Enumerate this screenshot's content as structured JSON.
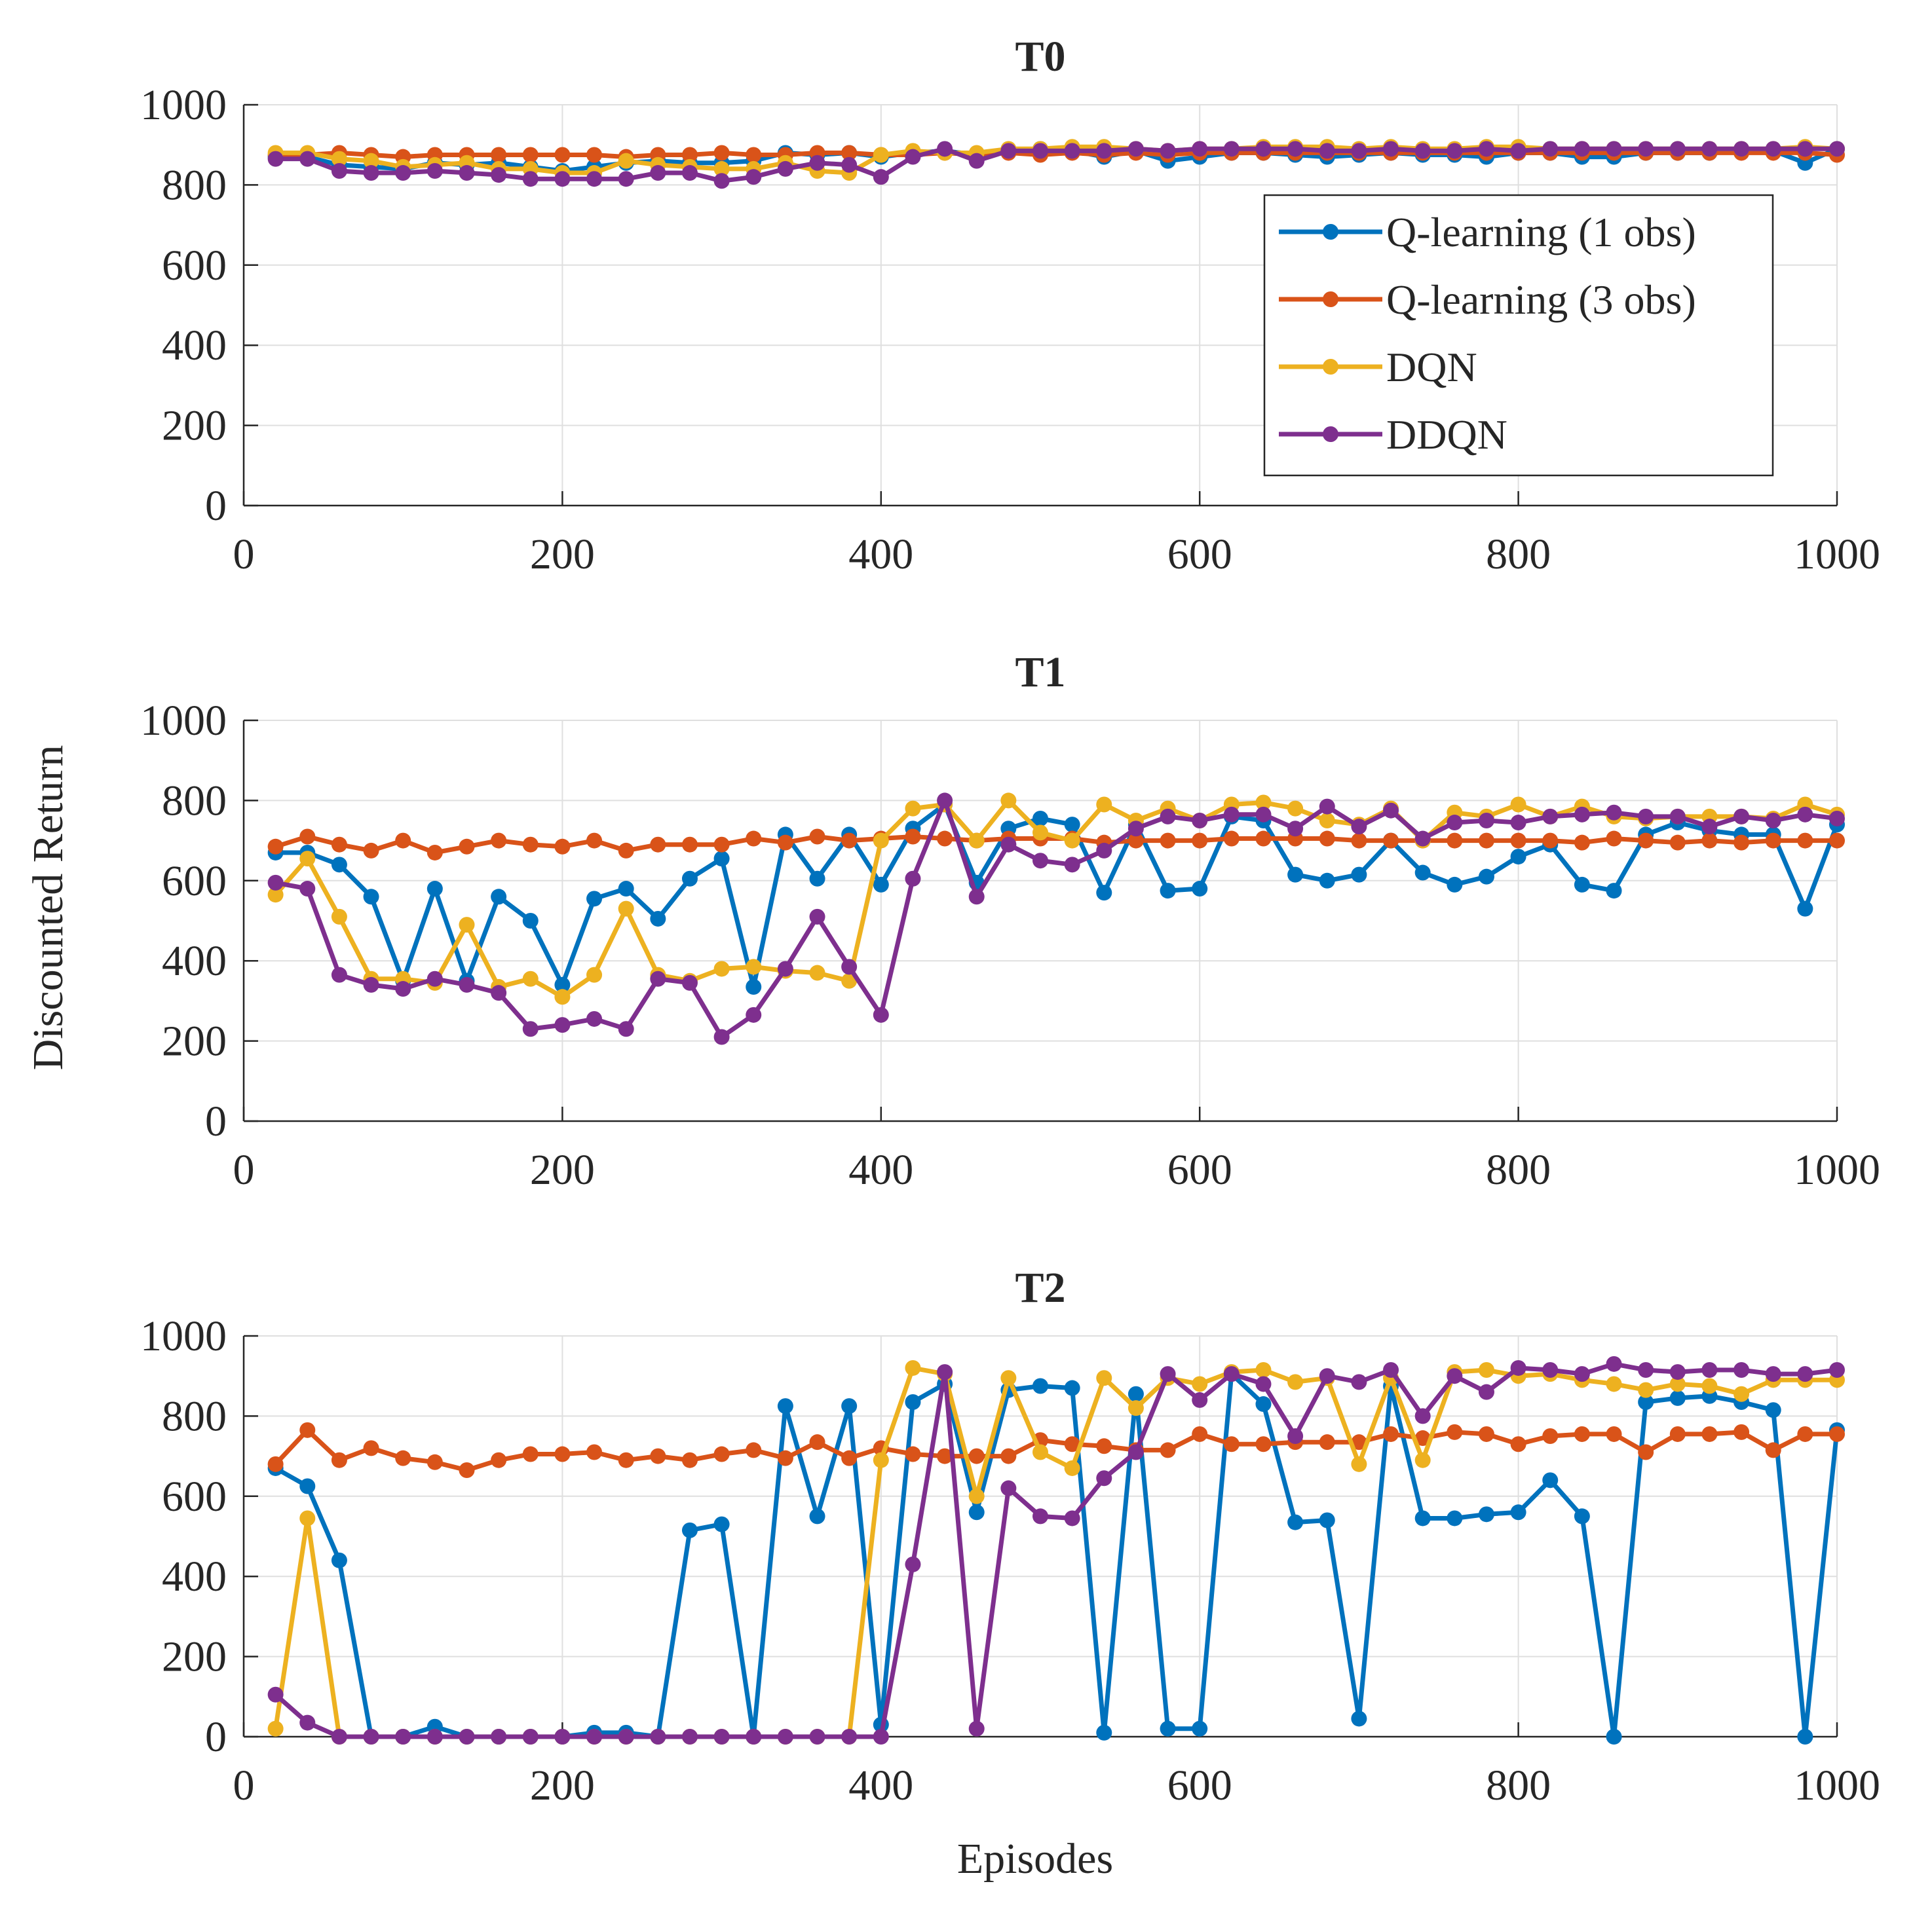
{
  "figure": {
    "ylabel": "Discounted Return",
    "xlabel": "Episodes"
  },
  "legend": {
    "entries": [
      "Q-learning (1 obs)",
      "Q-learning (3 obs)",
      "DQN",
      "DDQN"
    ],
    "colors": [
      "#0072BD",
      "#D95319",
      "#EDB120",
      "#7E2F8E"
    ]
  },
  "chart_data": [
    {
      "type": "line",
      "title": "T0",
      "xlabel": "Episodes",
      "ylabel": "Discounted Return",
      "xlim": [
        0,
        1000
      ],
      "ylim": [
        0,
        1000
      ],
      "xticks": [
        0,
        200,
        400,
        600,
        800,
        1000
      ],
      "yticks": [
        0,
        200,
        400,
        600,
        800,
        1000
      ],
      "grid": true,
      "legend_position": "right",
      "x": [
        20,
        40,
        60,
        80,
        100,
        120,
        140,
        160,
        180,
        200,
        220,
        240,
        260,
        280,
        300,
        320,
        340,
        360,
        380,
        400,
        420,
        440,
        460,
        480,
        500,
        520,
        540,
        560,
        580,
        600,
        620,
        640,
        660,
        680,
        700,
        720,
        740,
        760,
        780,
        800,
        820,
        840,
        860,
        880,
        900,
        920,
        940,
        960,
        980,
        1000
      ],
      "series": [
        {
          "name": "Q-learning (1 obs)",
          "color": "#0072BD",
          "values": [
            870,
            870,
            850,
            845,
            840,
            855,
            850,
            855,
            845,
            835,
            845,
            855,
            860,
            855,
            855,
            860,
            880,
            875,
            880,
            870,
            880,
            885,
            875,
            885,
            890,
            885,
            870,
            885,
            860,
            870,
            880,
            880,
            875,
            870,
            875,
            880,
            875,
            875,
            870,
            880,
            880,
            870,
            870,
            880,
            880,
            880,
            885,
            885,
            855,
            890
          ]
        },
        {
          "name": "Q-learning (3 obs)",
          "color": "#D95319",
          "values": [
            875,
            875,
            880,
            875,
            870,
            875,
            875,
            875,
            875,
            875,
            875,
            870,
            875,
            875,
            880,
            875,
            875,
            880,
            880,
            875,
            875,
            880,
            875,
            880,
            875,
            880,
            875,
            880,
            875,
            880,
            880,
            880,
            880,
            880,
            880,
            880,
            880,
            880,
            880,
            880,
            880,
            880,
            880,
            880,
            880,
            880,
            880,
            880,
            880,
            875
          ]
        },
        {
          "name": "DQN",
          "color": "#EDB120",
          "values": [
            880,
            880,
            865,
            860,
            845,
            850,
            855,
            840,
            840,
            830,
            830,
            860,
            850,
            845,
            840,
            840,
            855,
            835,
            830,
            875,
            885,
            880,
            880,
            890,
            890,
            895,
            895,
            890,
            885,
            890,
            890,
            895,
            895,
            895,
            890,
            895,
            890,
            890,
            895,
            895,
            890,
            890,
            890,
            890,
            890,
            890,
            890,
            890,
            895,
            890
          ]
        },
        {
          "name": "DDQN",
          "color": "#7E2F8E",
          "values": [
            865,
            865,
            835,
            830,
            830,
            835,
            830,
            825,
            815,
            815,
            815,
            815,
            830,
            830,
            810,
            820,
            840,
            855,
            850,
            820,
            870,
            890,
            860,
            885,
            885,
            885,
            885,
            890,
            885,
            890,
            890,
            890,
            890,
            885,
            885,
            890,
            885,
            885,
            890,
            885,
            890,
            890,
            890,
            890,
            890,
            890,
            890,
            890,
            890,
            890
          ]
        }
      ]
    },
    {
      "type": "line",
      "title": "T1",
      "xlabel": "Episodes",
      "ylabel": "Discounted Return",
      "xlim": [
        0,
        1000
      ],
      "ylim": [
        0,
        1000
      ],
      "xticks": [
        0,
        200,
        400,
        600,
        800,
        1000
      ],
      "yticks": [
        0,
        200,
        400,
        600,
        800,
        1000
      ],
      "grid": true,
      "x": [
        20,
        40,
        60,
        80,
        100,
        120,
        140,
        160,
        180,
        200,
        220,
        240,
        260,
        280,
        300,
        320,
        340,
        360,
        380,
        400,
        420,
        440,
        460,
        480,
        500,
        520,
        540,
        560,
        580,
        600,
        620,
        640,
        660,
        680,
        700,
        720,
        740,
        760,
        780,
        800,
        820,
        840,
        860,
        880,
        900,
        920,
        940,
        960,
        980,
        1000
      ],
      "series": [
        {
          "name": "Q-learning (1 obs)",
          "color": "#0072BD",
          "values": [
            670,
            670,
            640,
            560,
            350,
            580,
            350,
            560,
            500,
            340,
            555,
            580,
            505,
            605,
            655,
            335,
            715,
            605,
            715,
            590,
            730,
            790,
            595,
            730,
            755,
            740,
            570,
            740,
            575,
            580,
            760,
            750,
            615,
            600,
            615,
            700,
            620,
            590,
            610,
            660,
            690,
            590,
            575,
            715,
            745,
            725,
            715,
            715,
            530,
            740
          ]
        },
        {
          "name": "Q-learning (3 obs)",
          "color": "#D95319",
          "values": [
            685,
            710,
            690,
            675,
            700,
            670,
            685,
            700,
            690,
            685,
            700,
            675,
            690,
            690,
            690,
            705,
            695,
            710,
            700,
            705,
            710,
            705,
            700,
            705,
            705,
            705,
            695,
            700,
            700,
            700,
            705,
            705,
            705,
            705,
            700,
            700,
            700,
            700,
            700,
            700,
            700,
            695,
            705,
            700,
            695,
            700,
            695,
            700,
            700,
            700
          ]
        },
        {
          "name": "DQN",
          "color": "#EDB120",
          "values": [
            565,
            655,
            510,
            355,
            355,
            345,
            490,
            335,
            355,
            310,
            365,
            530,
            365,
            350,
            380,
            385,
            375,
            370,
            350,
            700,
            780,
            790,
            700,
            800,
            720,
            700,
            790,
            750,
            780,
            750,
            790,
            795,
            780,
            750,
            740,
            780,
            700,
            770,
            760,
            790,
            760,
            785,
            760,
            755,
            760,
            760,
            760,
            755,
            790,
            765
          ]
        },
        {
          "name": "DDQN",
          "color": "#7E2F8E",
          "values": [
            595,
            580,
            365,
            340,
            330,
            355,
            340,
            320,
            230,
            240,
            255,
            230,
            355,
            345,
            210,
            265,
            380,
            510,
            385,
            265,
            605,
            800,
            560,
            690,
            650,
            640,
            675,
            730,
            760,
            750,
            765,
            765,
            730,
            785,
            735,
            775,
            705,
            745,
            750,
            745,
            760,
            765,
            770,
            760,
            760,
            735,
            760,
            750,
            765,
            755
          ]
        }
      ]
    },
    {
      "type": "line",
      "title": "T2",
      "xlabel": "Episodes",
      "ylabel": "Discounted Return",
      "xlim": [
        0,
        1000
      ],
      "ylim": [
        0,
        1000
      ],
      "xticks": [
        0,
        200,
        400,
        600,
        800,
        1000
      ],
      "yticks": [
        0,
        200,
        400,
        600,
        800,
        1000
      ],
      "grid": true,
      "x": [
        20,
        40,
        60,
        80,
        100,
        120,
        140,
        160,
        180,
        200,
        220,
        240,
        260,
        280,
        300,
        320,
        340,
        360,
        380,
        400,
        420,
        440,
        460,
        480,
        500,
        520,
        540,
        560,
        580,
        600,
        620,
        640,
        660,
        680,
        700,
        720,
        740,
        760,
        780,
        800,
        820,
        840,
        860,
        880,
        900,
        920,
        940,
        960,
        980,
        1000
      ],
      "series": [
        {
          "name": "Q-learning (1 obs)",
          "color": "#0072BD",
          "values": [
            670,
            625,
            440,
            0,
            0,
            25,
            0,
            0,
            0,
            0,
            10,
            10,
            0,
            515,
            530,
            0,
            825,
            550,
            825,
            30,
            835,
            880,
            560,
            865,
            875,
            870,
            10,
            855,
            20,
            20,
            905,
            830,
            535,
            540,
            45,
            875,
            545,
            545,
            555,
            560,
            640,
            550,
            0,
            835,
            845,
            850,
            835,
            815,
            0,
            765
          ]
        },
        {
          "name": "Q-learning (3 obs)",
          "color": "#D95319",
          "values": [
            680,
            765,
            690,
            720,
            695,
            685,
            665,
            690,
            705,
            705,
            710,
            690,
            700,
            690,
            705,
            715,
            695,
            735,
            695,
            720,
            705,
            700,
            700,
            700,
            740,
            730,
            725,
            715,
            715,
            755,
            730,
            730,
            735,
            735,
            735,
            755,
            745,
            760,
            755,
            730,
            750,
            755,
            755,
            710,
            755,
            755,
            760,
            715,
            755,
            755
          ]
        },
        {
          "name": "DQN",
          "color": "#EDB120",
          "values": [
            20,
            545,
            0,
            0,
            0,
            0,
            0,
            0,
            0,
            0,
            0,
            0,
            0,
            0,
            0,
            0,
            0,
            0,
            0,
            690,
            920,
            905,
            600,
            895,
            710,
            670,
            895,
            820,
            895,
            880,
            910,
            915,
            885,
            895,
            680,
            895,
            690,
            910,
            915,
            900,
            905,
            890,
            880,
            865,
            880,
            875,
            855,
            890,
            890,
            890
          ]
        },
        {
          "name": "DDQN",
          "color": "#7E2F8E",
          "values": [
            105,
            35,
            0,
            0,
            0,
            0,
            0,
            0,
            0,
            0,
            0,
            0,
            0,
            0,
            0,
            0,
            0,
            0,
            0,
            0,
            430,
            910,
            20,
            620,
            550,
            545,
            645,
            710,
            905,
            840,
            905,
            880,
            750,
            900,
            885,
            915,
            800,
            900,
            860,
            920,
            915,
            905,
            930,
            915,
            910,
            915,
            915,
            905,
            905,
            915
          ]
        }
      ]
    }
  ]
}
